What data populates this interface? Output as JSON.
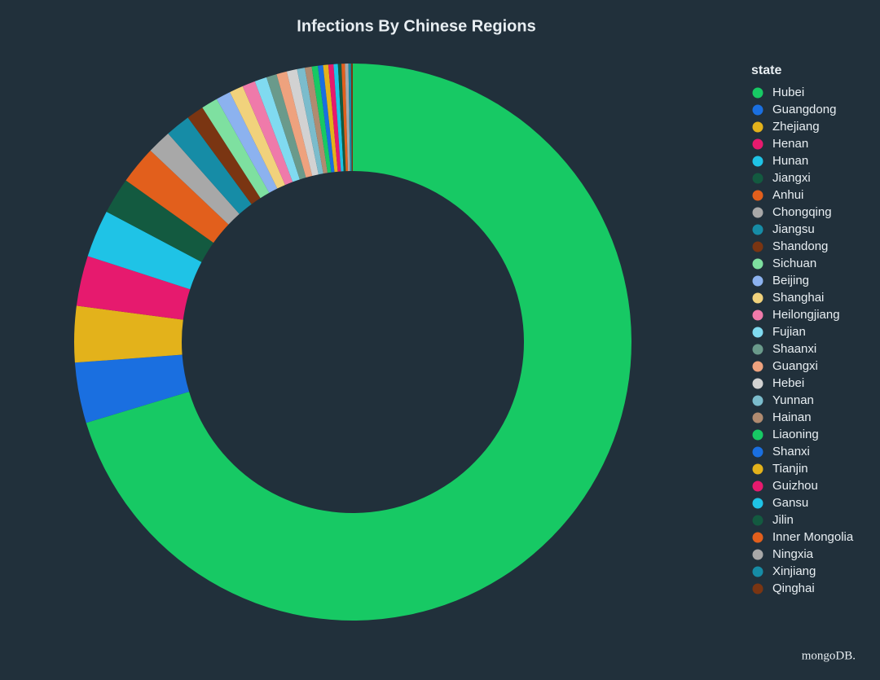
{
  "chart_data": {
    "type": "pie",
    "donut": true,
    "title": "Infections By Chinese Regions",
    "legend_title": "state",
    "legend_position": "right",
    "watermark": "mongoDB.",
    "categories": [
      "Hubei",
      "Guangdong",
      "Zhejiang",
      "Henan",
      "Hunan",
      "Jiangxi",
      "Anhui",
      "Chongqing",
      "Jiangsu",
      "Shandong",
      "Sichuan",
      "Beijing",
      "Shanghai",
      "Heilongjiang",
      "Fujian",
      "Shaanxi",
      "Guangxi",
      "Hebei",
      "Yunnan",
      "Hainan",
      "Liaoning",
      "Shanxi",
      "Tianjin",
      "Guizhou",
      "Gansu",
      "Jilin",
      "Inner Mongolia",
      "Ningxia",
      "Xinjiang",
      "Qinghai"
    ],
    "values": [
      70.1,
      3.5,
      3.25,
      2.9,
      2.75,
      2.1,
      2.2,
      1.4,
      1.45,
      1.0,
      0.95,
      0.85,
      0.8,
      0.75,
      0.7,
      0.6,
      0.6,
      0.6,
      0.45,
      0.4,
      0.35,
      0.3,
      0.3,
      0.3,
      0.25,
      0.2,
      0.2,
      0.2,
      0.15,
      0.1
    ],
    "colors": [
      "#17c964",
      "#1a6fe0",
      "#e3b21b",
      "#e61a6e",
      "#1fc3e6",
      "#135a40",
      "#e25f1c",
      "#a8a8a8",
      "#168ca6",
      "#7a3512",
      "#7ee0a0",
      "#8cb2ef",
      "#f1d27c",
      "#ef7aaa",
      "#80daf0",
      "#6a9a8b",
      "#eea27e",
      "#d2d2d2",
      "#7bbccc",
      "#b08b70",
      "#17c964",
      "#1a6fe0",
      "#e3b21b",
      "#e61a6e",
      "#1fc3e6",
      "#135a40",
      "#e25f1c",
      "#a8a8a8",
      "#168ca6",
      "#7a3512"
    ]
  }
}
